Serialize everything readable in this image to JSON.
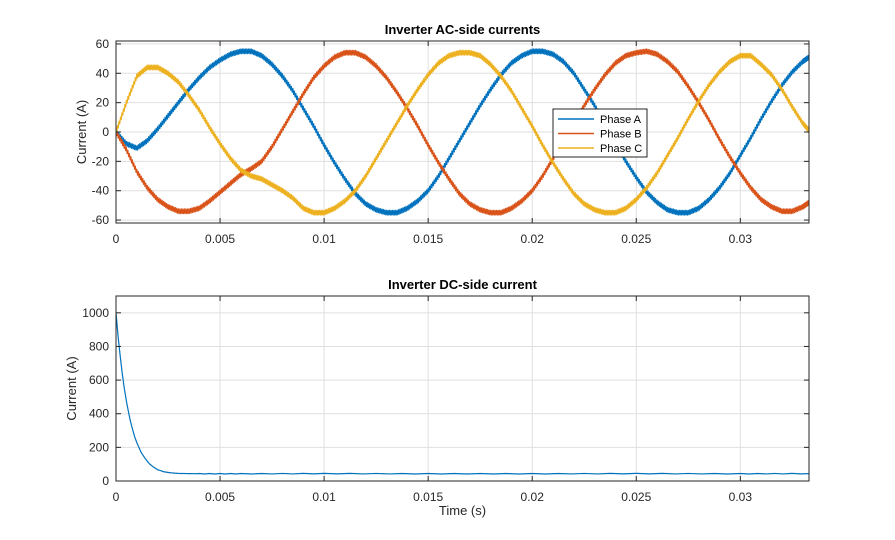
{
  "chart_data": [
    {
      "type": "line",
      "title": "Inverter AC-side currents",
      "xlabel": "",
      "ylabel": "Current (A)",
      "xlim": [
        0,
        0.0333
      ],
      "ylim": [
        -62,
        62
      ],
      "xticks": [
        0,
        0.005,
        0.01,
        0.015,
        0.02,
        0.025,
        0.03
      ],
      "xtick_labels": [
        "0",
        "0.005",
        "0.01",
        "0.015",
        "0.02",
        "0.025",
        "0.03"
      ],
      "yticks": [
        -60,
        -40,
        -20,
        0,
        20,
        40,
        60
      ],
      "ytick_labels": [
        "-60",
        "-40",
        "-20",
        "0",
        "20",
        "40",
        "60"
      ],
      "grid": true,
      "legend_position": "center-right",
      "series": [
        {
          "name": "Phase A",
          "color": "#0072BD",
          "x": [
            0,
            0.0005,
            0.001,
            0.0015,
            0.002,
            0.0025,
            0.003,
            0.0035,
            0.004,
            0.0045,
            0.005,
            0.0055,
            0.006,
            0.0065,
            0.007,
            0.0075,
            0.008,
            0.0085,
            0.009,
            0.0095,
            0.01,
            0.0105,
            0.011,
            0.0115,
            0.012,
            0.0125,
            0.013,
            0.0135,
            0.014,
            0.0145,
            0.015,
            0.0155,
            0.016,
            0.0165,
            0.017,
            0.0175,
            0.018,
            0.0185,
            0.019,
            0.0195,
            0.02,
            0.0205,
            0.021,
            0.0215,
            0.022,
            0.0225,
            0.023,
            0.0235,
            0.024,
            0.0245,
            0.025,
            0.0255,
            0.026,
            0.0265,
            0.027,
            0.0275,
            0.028,
            0.0285,
            0.029,
            0.0295,
            0.03,
            0.0305,
            0.031,
            0.0315,
            0.032,
            0.0325,
            0.033,
            0.0333
          ],
          "y": [
            0,
            -8,
            -11,
            -6,
            2,
            11,
            20,
            29,
            37,
            44,
            49,
            53,
            55,
            55,
            52,
            46,
            38,
            28,
            16,
            4,
            -9,
            -21,
            -32,
            -42,
            -49,
            -53,
            -55,
            -55,
            -52,
            -47,
            -40,
            -30,
            -18,
            -6,
            6,
            18,
            29,
            39,
            47,
            52,
            55,
            55,
            53,
            48,
            40,
            29,
            18,
            5,
            -8,
            -20,
            -31,
            -41,
            -48,
            -53,
            -55,
            -55,
            -52,
            -46,
            -38,
            -28,
            -16,
            -4,
            9,
            21,
            32,
            41,
            48,
            51
          ]
        },
        {
          "name": "Phase B",
          "color": "#D95319",
          "x": [
            0,
            0.0005,
            0.001,
            0.0015,
            0.002,
            0.0025,
            0.003,
            0.0035,
            0.004,
            0.0045,
            0.005,
            0.0055,
            0.006,
            0.0065,
            0.007,
            0.0075,
            0.008,
            0.0085,
            0.009,
            0.0095,
            0.01,
            0.0105,
            0.011,
            0.0115,
            0.012,
            0.0125,
            0.013,
            0.0135,
            0.014,
            0.0145,
            0.015,
            0.0155,
            0.016,
            0.0165,
            0.017,
            0.0175,
            0.018,
            0.0185,
            0.019,
            0.0195,
            0.02,
            0.0205,
            0.021,
            0.0215,
            0.022,
            0.0225,
            0.023,
            0.0235,
            0.024,
            0.0245,
            0.025,
            0.0255,
            0.026,
            0.0265,
            0.027,
            0.0275,
            0.028,
            0.0285,
            0.029,
            0.0295,
            0.03,
            0.0305,
            0.031,
            0.0315,
            0.032,
            0.0325,
            0.033,
            0.0333
          ],
          "y": [
            0,
            -12,
            -27,
            -38,
            -46,
            -51,
            -54,
            -54,
            -52,
            -47,
            -41,
            -35,
            -29,
            -25,
            -20,
            -10,
            2,
            14,
            26,
            37,
            45,
            51,
            54,
            54,
            51,
            45,
            37,
            27,
            16,
            4,
            -9,
            -21,
            -32,
            -42,
            -49,
            -53,
            -55,
            -55,
            -52,
            -47,
            -40,
            -30,
            -18,
            -6,
            6,
            18,
            29,
            39,
            47,
            52,
            54,
            55,
            53,
            48,
            41,
            31,
            20,
            8,
            -5,
            -17,
            -28,
            -38,
            -46,
            -51,
            -54,
            -54,
            -51,
            -48
          ]
        },
        {
          "name": "Phase C",
          "color": "#EDB120",
          "x": [
            0,
            0.0005,
            0.001,
            0.0015,
            0.002,
            0.0025,
            0.003,
            0.0035,
            0.004,
            0.0045,
            0.005,
            0.0055,
            0.006,
            0.0065,
            0.007,
            0.0075,
            0.008,
            0.0085,
            0.009,
            0.0095,
            0.01,
            0.0105,
            0.011,
            0.0115,
            0.012,
            0.0125,
            0.013,
            0.0135,
            0.014,
            0.0145,
            0.015,
            0.0155,
            0.016,
            0.0165,
            0.017,
            0.0175,
            0.018,
            0.0185,
            0.019,
            0.0195,
            0.02,
            0.0205,
            0.021,
            0.0215,
            0.022,
            0.0225,
            0.023,
            0.0235,
            0.024,
            0.0245,
            0.025,
            0.0255,
            0.026,
            0.0265,
            0.027,
            0.0275,
            0.028,
            0.0285,
            0.029,
            0.0295,
            0.03,
            0.0305,
            0.031,
            0.0315,
            0.032,
            0.0325,
            0.033,
            0.0333
          ],
          "y": [
            0,
            20,
            38,
            44,
            44,
            40,
            34,
            25,
            15,
            3,
            -8,
            -18,
            -26,
            -30,
            -32,
            -36,
            -40,
            -45,
            -52,
            -55,
            -55,
            -52,
            -47,
            -40,
            -30,
            -18,
            -6,
            6,
            18,
            29,
            39,
            47,
            52,
            54,
            54,
            52,
            46,
            38,
            28,
            16,
            4,
            -9,
            -21,
            -32,
            -42,
            -49,
            -53,
            -55,
            -55,
            -52,
            -46,
            -38,
            -28,
            -16,
            -4,
            9,
            21,
            32,
            41,
            48,
            52,
            52,
            46,
            39,
            29,
            17,
            6,
            1
          ]
        }
      ]
    },
    {
      "type": "line",
      "title": "Inverter DC-side current",
      "xlabel": "Time (s)",
      "ylabel": "Current (A)",
      "xlim": [
        0,
        0.0333
      ],
      "ylim": [
        0,
        1100
      ],
      "xticks": [
        0,
        0.005,
        0.01,
        0.015,
        0.02,
        0.025,
        0.03
      ],
      "xtick_labels": [
        "0",
        "0.005",
        "0.01",
        "0.015",
        "0.02",
        "0.025",
        "0.03"
      ],
      "yticks": [
        0,
        200,
        400,
        600,
        800,
        1000
      ],
      "ytick_labels": [
        "0",
        "200",
        "400",
        "600",
        "800",
        "1000"
      ],
      "grid": true,
      "series": [
        {
          "color": "#0072BD",
          "x": [
            0,
            0.0001,
            0.0002,
            0.0003,
            0.0004,
            0.0005,
            0.0006,
            0.0007,
            0.0008,
            0.0009,
            0.001,
            0.0012,
            0.0014,
            0.0016,
            0.0018,
            0.002,
            0.0023,
            0.0026,
            0.003,
            0.004,
            0.006,
            0.01,
            0.015,
            0.02,
            0.025,
            0.03,
            0.0333
          ],
          "y": [
            1000,
            860,
            745,
            640,
            550,
            475,
            410,
            352,
            305,
            262,
            228,
            172,
            134,
            103,
            83,
            67,
            55,
            49,
            45,
            43,
            43,
            44,
            43,
            43,
            44,
            43,
            44
          ]
        }
      ]
    }
  ]
}
